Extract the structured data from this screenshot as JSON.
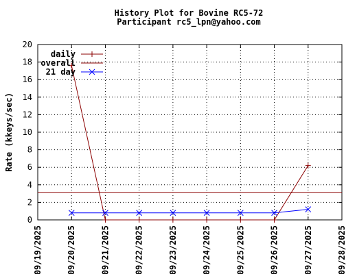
{
  "chart_data": {
    "type": "line",
    "title": "History Plot for Bovine RC5-72",
    "subtitle": "Participant rc5_lpn@yahoo.com",
    "ylabel": "Rate (kkeys/sec)",
    "xlabel": "",
    "ylim": [
      0,
      20
    ],
    "yticks": [
      0,
      2,
      4,
      6,
      8,
      10,
      12,
      14,
      16,
      18,
      20
    ],
    "xticks": [
      "09/19/2025",
      "09/20/2025",
      "09/21/2025",
      "09/22/2025",
      "09/23/2025",
      "09/24/2025",
      "09/25/2025",
      "09/26/2025",
      "09/27/2025",
      "09/28/2025"
    ],
    "grid": true,
    "legend_position": "top-left",
    "series": [
      {
        "name": "daily",
        "color": "#8b0000",
        "marker": "plus",
        "points": [
          {
            "x": "09/20/2025",
            "y": 17.6
          },
          {
            "x": "09/21/2025",
            "y": 0
          },
          {
            "x": "09/22/2025",
            "y": 0
          },
          {
            "x": "09/23/2025",
            "y": 0
          },
          {
            "x": "09/24/2025",
            "y": 0
          },
          {
            "x": "09/25/2025",
            "y": 0
          },
          {
            "x": "09/26/2025",
            "y": 0
          },
          {
            "x": "09/27/2025",
            "y": 6.2
          }
        ]
      },
      {
        "name": "overall",
        "color": "#8b0000",
        "marker": "none",
        "constant": 3.1
      },
      {
        "name": "21 day",
        "color": "#0000ff",
        "marker": "x",
        "points": [
          {
            "x": "09/20/2025",
            "y": 0.8
          },
          {
            "x": "09/21/2025",
            "y": 0.8
          },
          {
            "x": "09/22/2025",
            "y": 0.8
          },
          {
            "x": "09/23/2025",
            "y": 0.8
          },
          {
            "x": "09/24/2025",
            "y": 0.8
          },
          {
            "x": "09/25/2025",
            "y": 0.8
          },
          {
            "x": "09/26/2025",
            "y": 0.8
          },
          {
            "x": "09/27/2025",
            "y": 1.2
          }
        ]
      }
    ]
  }
}
